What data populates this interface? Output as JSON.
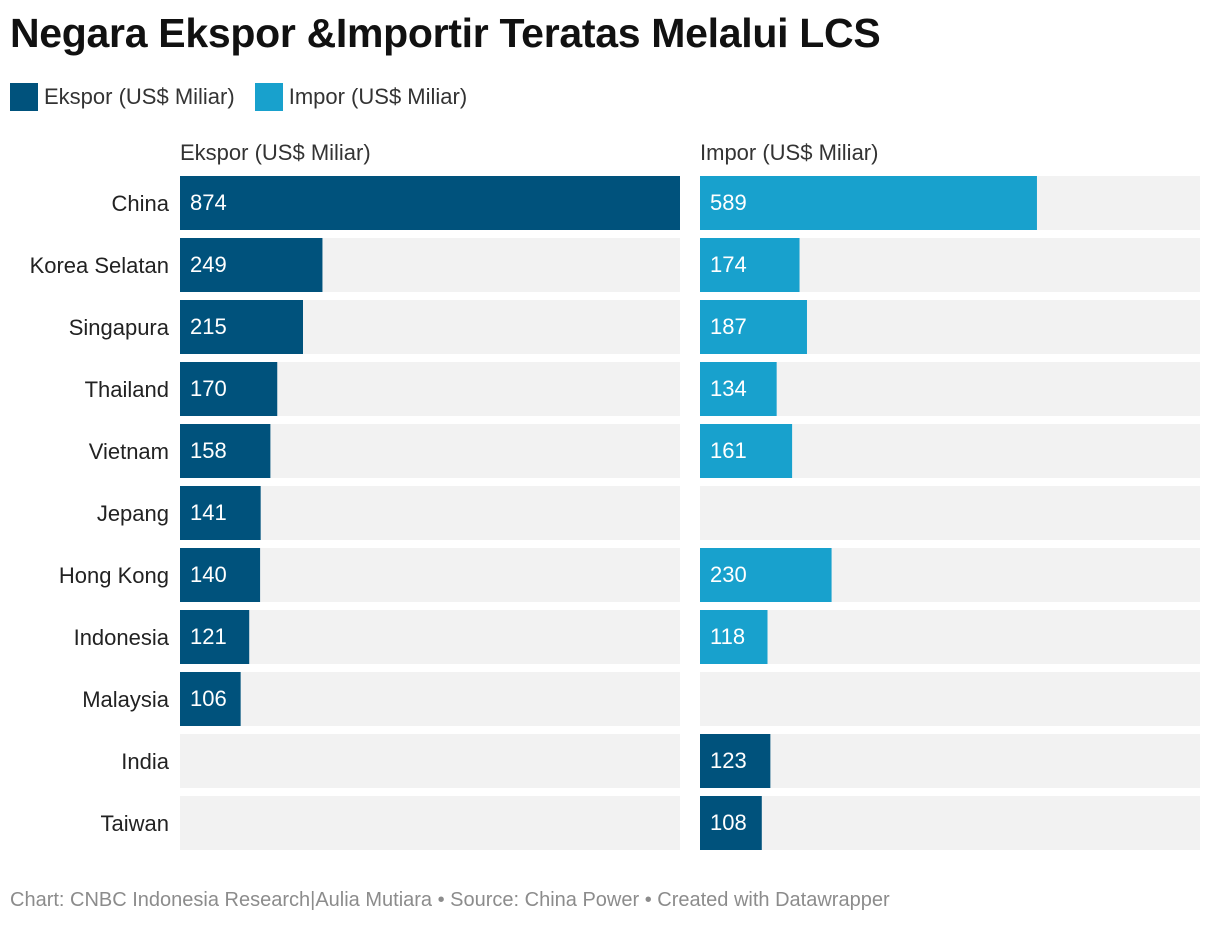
{
  "title": "Negara Ekspor &Importir Teratas Melalui LCS",
  "legend": [
    {
      "label": "Ekspor (US$ Miliar)",
      "color": "#00527c"
    },
    {
      "label": "Impor (US$ Miliar)",
      "color": "#18a1cd"
    }
  ],
  "footer": "Chart: CNBC Indonesia Research|Aulia Mutiara • Source: China Power • Created with Datawrapper",
  "colors": {
    "ekspor": "#00527c",
    "impor": "#18a1cd",
    "track": "#f2f2f2",
    "label_text": "#ffffff"
  },
  "chart_data": {
    "type": "bar",
    "orientation": "horizontal",
    "layout": "split-panels",
    "categories": [
      "China",
      "Korea Selatan",
      "Singapura",
      "Thailand",
      "Vietnam",
      "Jepang",
      "Hong Kong",
      "Indonesia",
      "Malaysia",
      "India",
      "Taiwan"
    ],
    "series": [
      {
        "name": "Ekspor (US$ Miliar)",
        "color": "#00527c",
        "values": [
          874,
          249,
          215,
          170,
          158,
          141,
          140,
          121,
          106,
          null,
          null
        ]
      },
      {
        "name": "Impor (US$ Miliar)",
        "color": "#18a1cd",
        "values": [
          589,
          174,
          187,
          134,
          161,
          null,
          230,
          118,
          null,
          123,
          108
        ],
        "colors": [
          "#18a1cd",
          "#18a1cd",
          "#18a1cd",
          "#18a1cd",
          "#18a1cd",
          null,
          "#18a1cd",
          "#18a1cd",
          null,
          "#00527c",
          "#00527c"
        ]
      }
    ],
    "xlim": [
      0,
      874
    ],
    "grid": false,
    "legend_position": "top-left",
    "data_labels": true
  }
}
